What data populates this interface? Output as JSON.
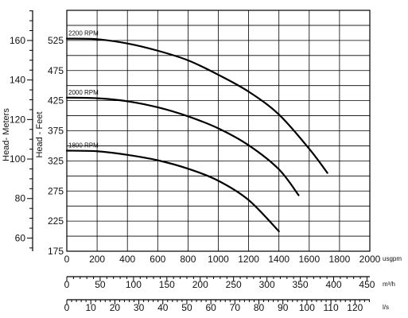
{
  "chart_data": {
    "type": "line",
    "x_axes": [
      {
        "unit": "usgpm",
        "ticks": [
          "0",
          "200",
          "400",
          "600",
          "800",
          "1000",
          "1200",
          "1400",
          "1600",
          "1800",
          "2000"
        ],
        "range": [
          0,
          2000
        ]
      },
      {
        "unit": "m³/h",
        "ticks": [
          "0",
          "50",
          "100",
          "150",
          "200",
          "250",
          "300",
          "350",
          "400",
          "450"
        ],
        "range": [
          0,
          454.25
        ]
      },
      {
        "unit": "l/s",
        "ticks": [
          "0",
          "10",
          "20",
          "30",
          "40",
          "50",
          "60",
          "70",
          "80",
          "90",
          "100",
          "110",
          "120"
        ],
        "range": [
          0,
          126.2
        ]
      }
    ],
    "y_axes": [
      {
        "label": "Head - Feet",
        "ticks": [
          "175",
          "225",
          "275",
          "325",
          "375",
          "425",
          "475",
          "525"
        ],
        "range": [
          175,
          575
        ],
        "scale": "linear"
      },
      {
        "label": "Head- Meters",
        "ticks": [
          "60",
          "80",
          "100",
          "120",
          "140",
          "160"
        ],
        "range": [
          53.34,
          175.26
        ],
        "scale": "linear"
      }
    ],
    "grid": true,
    "series": [
      {
        "name": "2200 RPM",
        "x": [
          0,
          200,
          400,
          600,
          800,
          1000,
          1200,
          1400,
          1600,
          1720
        ],
        "y": [
          528,
          527,
          520,
          508,
          492,
          468,
          440,
          402,
          345,
          305
        ]
      },
      {
        "name": "2000 RPM",
        "x": [
          0,
          200,
          400,
          600,
          800,
          1000,
          1200,
          1400,
          1530
        ],
        "y": [
          430,
          429,
          424,
          414,
          399,
          379,
          351,
          311,
          268
        ]
      },
      {
        "name": "1800 RPM",
        "x": [
          0,
          200,
          400,
          600,
          800,
          1000,
          1200,
          1400
        ],
        "y": [
          342,
          341,
          335,
          326,
          312,
          292,
          260,
          208
        ]
      }
    ]
  }
}
